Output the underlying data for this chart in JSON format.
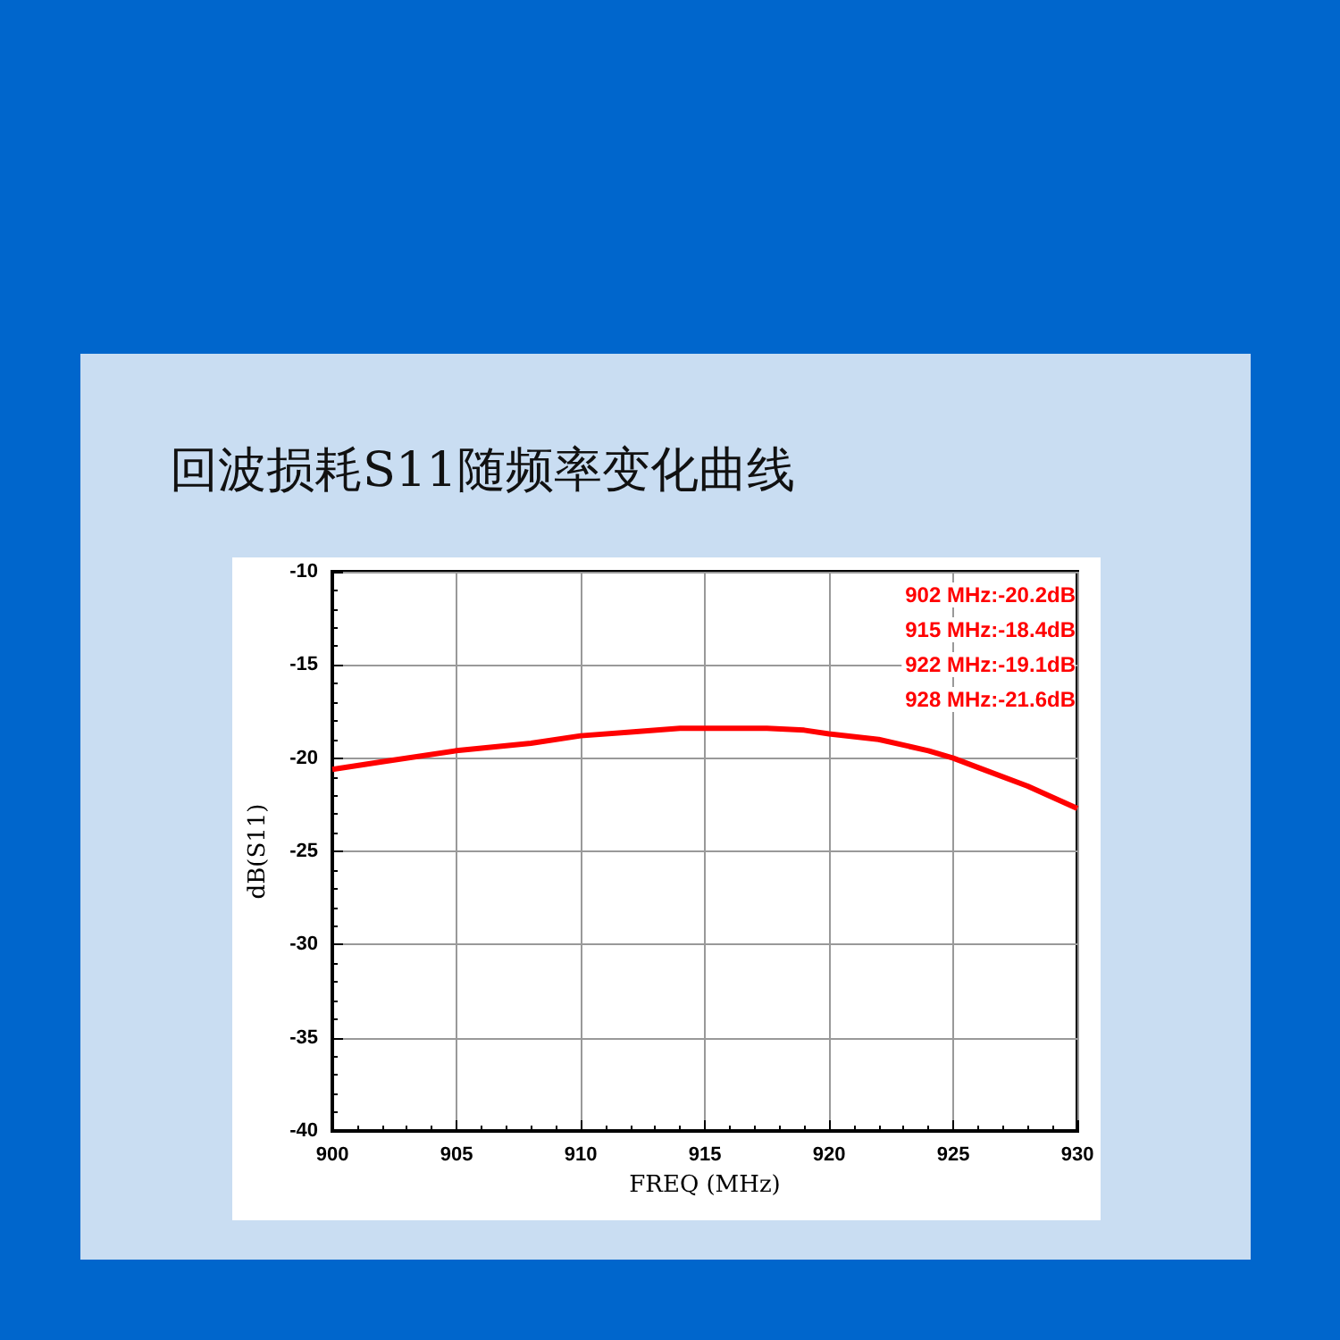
{
  "chart_data": {
    "type": "line",
    "title": "回波损耗S11随频率变化曲线",
    "xlabel": "FREQ (MHz)",
    "ylabel": "dB(S11)",
    "x": [
      900,
      902,
      905,
      908,
      910,
      912,
      914,
      916,
      917.5,
      919,
      920,
      922,
      924,
      925,
      926,
      928,
      930
    ],
    "series": [
      {
        "color": "#ff0000",
        "values": [
          -20.6,
          -20.2,
          -19.6,
          -19.2,
          -18.8,
          -18.6,
          -18.4,
          -18.4,
          -18.4,
          -18.5,
          -18.7,
          -19.0,
          -19.6,
          -20.0,
          -20.5,
          -21.5,
          -22.7
        ]
      }
    ],
    "xlim": [
      900,
      930
    ],
    "xticks": [
      900,
      905,
      910,
      915,
      920,
      925,
      930
    ],
    "ylim": [
      -40,
      -10
    ],
    "yticks": [
      -40,
      -35,
      -30,
      -25,
      -20,
      -15,
      -10
    ],
    "grid": true,
    "marker": "none",
    "line_style": "solid",
    "annotations": [
      "902 MHz:-20.2dB",
      "915 MHz:-18.4dB",
      "922 MHz:-19.1dB",
      "928 MHz:-21.6dB"
    ]
  }
}
